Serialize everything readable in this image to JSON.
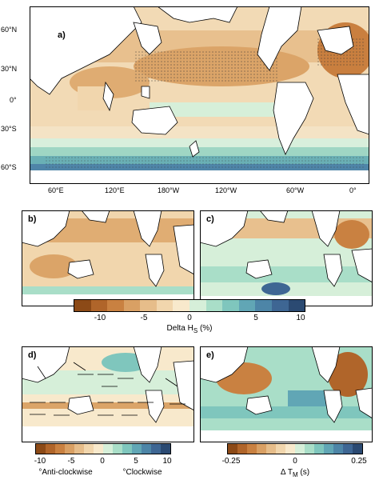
{
  "panels": {
    "a": {
      "label": "a)"
    },
    "b": {
      "label": "b)"
    },
    "c": {
      "label": "c)"
    },
    "d": {
      "label": "d)"
    },
    "e": {
      "label": "e)"
    }
  },
  "axes": {
    "lat_ticks": [
      "60°N",
      "30°N",
      "0°",
      "30°S",
      "60°S"
    ],
    "lon_ticks": [
      "60°E",
      "120°E",
      "180°W",
      "120°W",
      "60°W",
      "0°"
    ]
  },
  "colorbar_hs": {
    "ticks": [
      "-10",
      "-5",
      "0",
      "5",
      "10"
    ],
    "label": "Delta H",
    "label_sub": "S",
    "label_unit": " (%)",
    "colors": [
      "#8c4a17",
      "#b0652a",
      "#c98141",
      "#d9a064",
      "#e6bd8a",
      "#f1d6ad",
      "#f8e9cc",
      "#d6efd9",
      "#a9dec8",
      "#7fc6bd",
      "#61a6b5",
      "#4d85a7",
      "#3e6693",
      "#2b4a72"
    ]
  },
  "colorbar_dir": {
    "ticks": [
      "-10",
      "-5",
      "0",
      "5",
      "10"
    ],
    "left_label": "Anti-clockwise",
    "right_label": "Clockwise",
    "colors": [
      "#8c4a17",
      "#b0652a",
      "#c98141",
      "#d9a064",
      "#e6bd8a",
      "#f1d6ad",
      "#f8e9cc",
      "#d6efd9",
      "#a9dec8",
      "#7fc6bd",
      "#61a6b5",
      "#4d85a7",
      "#3e6693",
      "#2b4a72"
    ]
  },
  "colorbar_tm": {
    "ticks": [
      "-0.25",
      "0",
      "0.25"
    ],
    "label": "Δ T",
    "label_sub": "M",
    "label_unit": " (s)",
    "colors": [
      "#8c4a17",
      "#b0652a",
      "#c98141",
      "#d9a064",
      "#e6bd8a",
      "#f1d6ad",
      "#f8e9cc",
      "#d6efd9",
      "#a9dec8",
      "#7fc6bd",
      "#61a6b5",
      "#4d85a7",
      "#3e6693",
      "#2b4a72"
    ]
  }
}
